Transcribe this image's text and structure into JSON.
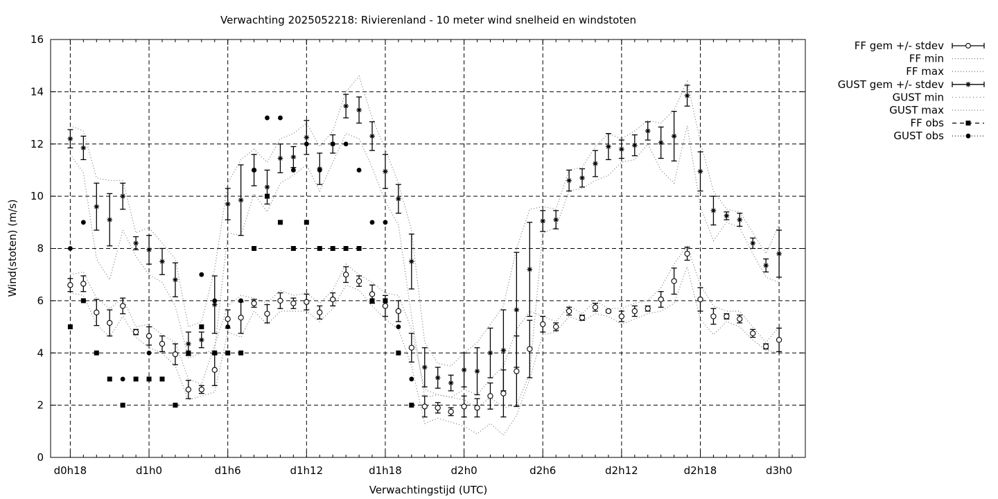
{
  "chart_data": {
    "type": "line",
    "title": "Verwachting 2025052218: Rivierenland - 10 meter wind snelheid en windstoten",
    "xlabel": "Verwachtingstijd (UTC)",
    "ylabel": "Wind(stoten) (m/s)",
    "ylim": [
      0,
      16
    ],
    "yticks": [
      0,
      2,
      4,
      6,
      8,
      10,
      12,
      14,
      16
    ],
    "xlim": [
      -1.5,
      56
    ],
    "xticks": [
      {
        "x": 0,
        "label": "d0h18"
      },
      {
        "x": 6,
        "label": "d1h0"
      },
      {
        "x": 12,
        "label": "d1h6"
      },
      {
        "x": 18,
        "label": "d1h12"
      },
      {
        "x": 24,
        "label": "d1h18"
      },
      {
        "x": 30,
        "label": "d2h0"
      },
      {
        "x": 36,
        "label": "d2h6"
      },
      {
        "x": 42,
        "label": "d2h12"
      },
      {
        "x": 48,
        "label": "d2h18"
      },
      {
        "x": 54,
        "label": "d3h0"
      }
    ],
    "grid": true,
    "legend_position": "outside-top-right",
    "legend": [
      "FF gem +/- stdev",
      "FF min",
      "FF max",
      "GUST gem +/- stdev",
      "GUST min",
      "GUST max",
      "FF obs",
      "GUST obs"
    ],
    "ff_mean": {
      "name": "FF gem +/- stdev",
      "x": [
        0,
        1,
        2,
        3,
        4,
        5,
        6,
        7,
        8,
        9,
        10,
        11,
        12,
        13,
        14,
        15,
        16,
        17,
        18,
        19,
        20,
        21,
        22,
        23,
        24,
        25,
        26,
        27,
        28,
        29,
        30,
        31,
        32,
        33,
        34,
        35,
        36,
        37,
        38,
        39,
        40,
        41,
        42,
        43,
        44,
        45,
        46,
        47,
        48,
        49,
        50,
        51,
        52,
        53,
        54
      ],
      "mean": [
        6.6,
        6.65,
        5.55,
        5.15,
        5.8,
        4.8,
        4.65,
        4.35,
        3.95,
        2.6,
        2.6,
        3.35,
        5.3,
        5.35,
        5.9,
        5.5,
        6.0,
        5.9,
        5.95,
        5.55,
        6.05,
        7.0,
        6.75,
        6.25,
        5.8,
        5.6,
        4.2,
        1.95,
        1.9,
        1.75,
        1.95,
        1.9,
        2.35,
        2.45,
        3.3,
        4.15,
        5.1,
        5.0,
        5.6,
        5.35,
        5.75,
        5.6,
        5.4,
        5.6,
        5.7,
        6.05,
        6.75,
        7.8,
        6.05,
        5.4,
        5.4,
        5.3,
        4.75,
        4.25,
        4.5
      ],
      "stdev": [
        0.25,
        0.3,
        0.5,
        0.5,
        0.3,
        0.1,
        0.35,
        0.3,
        0.4,
        0.35,
        0.15,
        0.6,
        0.35,
        0.6,
        0.15,
        0.35,
        0.3,
        0.2,
        0.3,
        0.25,
        0.25,
        0.3,
        0.2,
        0.35,
        0.4,
        0.4,
        0.55,
        0.4,
        0.2,
        0.15,
        0.4,
        0.35,
        0.5,
        0.9,
        1.35,
        1.1,
        0.3,
        0.15,
        0.15,
        0.1,
        0.15,
        0.05,
        0.2,
        0.2,
        0.1,
        0.3,
        0.5,
        0.25,
        0.45,
        0.3,
        0.1,
        0.15,
        0.15,
        0.1,
        0.45
      ]
    },
    "ff_min": {
      "name": "FF min",
      "x": [
        0,
        1,
        2,
        3,
        4,
        5,
        6,
        7,
        8,
        9,
        10,
        11,
        12,
        13,
        14,
        15,
        16,
        17,
        18,
        19,
        20,
        21,
        22,
        23,
        24,
        25,
        26,
        27,
        28,
        29,
        30,
        31,
        32,
        33,
        34,
        35,
        36,
        37,
        38,
        39,
        40,
        41,
        42,
        43,
        44,
        45,
        46,
        47,
        48,
        49,
        50,
        51,
        52,
        53,
        54
      ],
      "values": [
        6.3,
        6.2,
        5.1,
        4.6,
        5.4,
        4.6,
        4.2,
        4.0,
        3.5,
        2.2,
        2.35,
        2.5,
        4.8,
        4.6,
        5.6,
        5.1,
        5.6,
        5.6,
        5.6,
        5.2,
        5.7,
        6.6,
        6.4,
        5.8,
        5.3,
        4.9,
        3.5,
        1.3,
        1.5,
        1.35,
        1.2,
        0.9,
        1.3,
        0.85,
        1.6,
        3.0,
        4.7,
        4.8,
        5.4,
        5.2,
        5.5,
        5.4,
        5.1,
        5.3,
        5.5,
        5.6,
        5.9,
        7.3,
        5.3,
        4.7,
        5.2,
        5.0,
        4.5,
        4.1,
        4.0
      ]
    },
    "ff_max": {
      "name": "FF max",
      "x": [
        0,
        1,
        2,
        3,
        4,
        5,
        6,
        7,
        8,
        9,
        10,
        11,
        12,
        13,
        14,
        15,
        16,
        17,
        18,
        19,
        20,
        21,
        22,
        23,
        24,
        25,
        26,
        27,
        28,
        29,
        30,
        31,
        32,
        33,
        34,
        35,
        36,
        37,
        38,
        39,
        40,
        41,
        42,
        43,
        44,
        45,
        46,
        47,
        48,
        49,
        50,
        51,
        52,
        53,
        54
      ],
      "values": [
        7.0,
        7.1,
        6.1,
        5.7,
        6.1,
        5.0,
        5.1,
        4.7,
        4.4,
        3.0,
        2.8,
        4.3,
        5.8,
        6.2,
        6.1,
        5.9,
        6.4,
        6.2,
        6.3,
        5.9,
        6.4,
        7.4,
        7.0,
        6.7,
        6.3,
        6.2,
        4.9,
        2.6,
        2.4,
        2.3,
        2.6,
        2.4,
        3.0,
        3.5,
        4.9,
        5.6,
        5.4,
        5.2,
        5.8,
        5.5,
        6.0,
        5.7,
        5.7,
        5.9,
        6.0,
        6.5,
        7.4,
        8.1,
        6.6,
        5.8,
        5.6,
        5.6,
        5.0,
        4.4,
        5.0
      ]
    },
    "gust_mean": {
      "name": "GUST gem +/- stdev",
      "x": [
        0,
        1,
        2,
        3,
        4,
        5,
        6,
        7,
        8,
        9,
        10,
        11,
        12,
        13,
        14,
        15,
        16,
        17,
        18,
        19,
        20,
        21,
        22,
        23,
        24,
        25,
        26,
        27,
        28,
        29,
        30,
        31,
        32,
        33,
        34,
        35,
        36,
        37,
        38,
        39,
        40,
        41,
        42,
        43,
        44,
        45,
        46,
        47,
        48,
        49,
        50,
        51,
        52,
        53,
        54
      ],
      "mean": [
        12.2,
        11.85,
        9.6,
        9.1,
        10.0,
        8.2,
        7.95,
        7.5,
        6.8,
        4.35,
        4.5,
        5.85,
        9.7,
        9.85,
        11.0,
        10.35,
        11.45,
        11.5,
        12.25,
        11.05,
        12.0,
        13.45,
        13.3,
        12.3,
        10.95,
        9.9,
        7.5,
        3.45,
        3.05,
        2.85,
        3.35,
        3.3,
        4.0,
        4.1,
        5.65,
        7.2,
        9.05,
        9.1,
        10.6,
        10.7,
        11.25,
        11.9,
        11.8,
        11.95,
        12.5,
        12.05,
        12.3,
        13.85,
        10.95,
        9.45,
        9.25,
        9.1,
        8.2,
        7.35,
        7.8
      ],
      "stdev": [
        0.35,
        0.45,
        0.9,
        1.0,
        0.5,
        0.25,
        0.55,
        0.5,
        0.65,
        0.45,
        0.3,
        1.1,
        0.6,
        1.35,
        0.6,
        0.65,
        0.55,
        0.4,
        0.65,
        0.6,
        0.35,
        0.45,
        0.5,
        0.55,
        0.65,
        0.55,
        1.05,
        0.75,
        0.4,
        0.3,
        0.65,
        0.9,
        0.95,
        1.55,
        2.2,
        1.8,
        0.4,
        0.35,
        0.4,
        0.35,
        0.5,
        0.5,
        0.35,
        0.4,
        0.35,
        0.6,
        0.95,
        0.4,
        0.75,
        0.55,
        0.15,
        0.25,
        0.2,
        0.25,
        0.9
      ]
    },
    "gust_min": {
      "name": "GUST min",
      "x": [
        0,
        1,
        2,
        3,
        4,
        5,
        6,
        7,
        8,
        9,
        10,
        11,
        12,
        13,
        14,
        15,
        16,
        17,
        18,
        19,
        20,
        21,
        22,
        23,
        24,
        25,
        26,
        27,
        28,
        29,
        30,
        31,
        32,
        33,
        34,
        35,
        36,
        37,
        38,
        39,
        40,
        41,
        42,
        43,
        44,
        45,
        46,
        47,
        48,
        49,
        50,
        51,
        52,
        53,
        54
      ],
      "values": [
        11.6,
        10.9,
        7.6,
        6.8,
        8.7,
        7.7,
        7.0,
        6.7,
        5.8,
        3.8,
        4.0,
        4.1,
        8.6,
        8.5,
        10.1,
        9.4,
        10.5,
        10.8,
        11.2,
        10.2,
        11.3,
        12.4,
        12.2,
        11.1,
        9.8,
        8.9,
        5.4,
        2.3,
        2.4,
        2.3,
        2.2,
        1.9,
        2.3,
        1.9,
        2.0,
        3.2,
        8.6,
        8.8,
        10.2,
        10.3,
        10.6,
        10.8,
        11.3,
        11.4,
        12.0,
        11.0,
        10.5,
        12.7,
        9.6,
        8.3,
        9.0,
        8.8,
        7.8,
        6.9,
        6.7
      ]
    },
    "gust_max": {
      "name": "GUST max",
      "x": [
        0,
        1,
        2,
        3,
        4,
        5,
        6,
        7,
        8,
        9,
        10,
        11,
        12,
        13,
        14,
        15,
        16,
        17,
        18,
        19,
        20,
        21,
        22,
        23,
        24,
        25,
        26,
        27,
        28,
        29,
        30,
        31,
        32,
        33,
        34,
        35,
        36,
        37,
        38,
        39,
        40,
        41,
        42,
        43,
        44,
        45,
        46,
        47,
        48,
        49,
        50,
        51,
        52,
        53,
        54
      ],
      "values": [
        12.7,
        12.5,
        10.7,
        10.6,
        10.6,
        8.6,
        8.8,
        8.2,
        7.6,
        5.0,
        5.2,
        7.2,
        10.5,
        11.4,
        11.8,
        11.3,
        12.2,
        12.4,
        12.8,
        11.9,
        12.5,
        14.0,
        14.6,
        13.0,
        11.8,
        10.5,
        8.7,
        4.4,
        3.6,
        3.5,
        4.0,
        4.4,
        5.1,
        5.8,
        8.0,
        9.5,
        9.6,
        9.5,
        11.0,
        11.1,
        11.9,
        12.4,
        12.2,
        12.5,
        12.9,
        12.8,
        13.3,
        14.4,
        12.1,
        10.2,
        9.5,
        9.4,
        8.6,
        7.8,
        8.9
      ]
    },
    "ff_obs": {
      "name": "FF obs",
      "x": [
        0,
        1,
        2,
        3,
        4,
        5,
        6,
        7,
        8,
        9,
        10,
        11,
        12,
        13,
        14,
        15,
        16,
        17,
        18,
        19,
        20,
        21,
        22,
        23,
        24,
        25,
        26
      ],
      "values": [
        5,
        6,
        4,
        3,
        2,
        3,
        3,
        3,
        2,
        4,
        5,
        4,
        4,
        4,
        8,
        10,
        9,
        8,
        9,
        8,
        8,
        8,
        8,
        6,
        6,
        4,
        2
      ]
    },
    "gust_obs": {
      "name": "GUST obs",
      "x": [
        0,
        1,
        4,
        6,
        10,
        11,
        12,
        13,
        14,
        15,
        16,
        17,
        18,
        19,
        20,
        21,
        22,
        23,
        24,
        25,
        26
      ],
      "values": [
        8,
        9,
        3,
        4,
        7,
        6,
        5,
        6,
        11,
        13,
        13,
        11,
        12,
        11,
        12,
        12,
        11,
        9,
        9,
        5,
        3
      ]
    }
  }
}
